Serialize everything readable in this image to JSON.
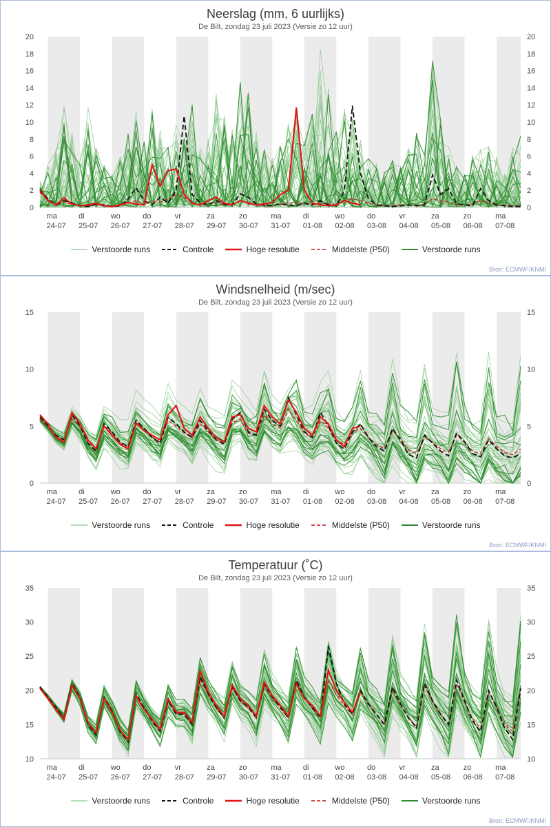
{
  "source_note": "Bron: ECMWF/KNMI",
  "colors": {
    "ensemble_light": "#8bc88b",
    "ensemble_dark": "#2e8b2e",
    "control": "#141414",
    "hires": "#e01515",
    "median": "#d03030",
    "band": "#ebebeb",
    "axis_text": "#454545",
    "baseline": "#c8c8c8",
    "panel_border": "#aebadd",
    "source_text": "#8d9cc0"
  },
  "x_axis": {
    "day_names": [
      "ma",
      "di",
      "wo",
      "do",
      "vr",
      "za",
      "zo",
      "ma",
      "di",
      "wo",
      "do",
      "vr",
      "za",
      "zo",
      "ma"
    ],
    "day_dates": [
      "24-07",
      "25-07",
      "26-07",
      "27-07",
      "28-07",
      "29-07",
      "30-07",
      "31-07",
      "01-08",
      "02-08",
      "03-08",
      "04-08",
      "05-08",
      "06-08",
      "07-08"
    ]
  },
  "legend": [
    {
      "label": "Verstoorde runs",
      "style": "ensemble-light"
    },
    {
      "label": "Controle",
      "style": "control"
    },
    {
      "label": "Hoge resolutie",
      "style": "hires"
    },
    {
      "label": "Middelste (P50)",
      "style": "median"
    },
    {
      "label": "Verstoorde runs",
      "style": "ensemble-dark"
    }
  ],
  "chart_data": [
    {
      "type": "line",
      "title": "Neerslag (mm, 6 uurlijks)",
      "subtitle": "De Bilt, zondag 23 juli 2023 (Versie zo 12 uur)",
      "legend_position": "bottom",
      "ylim": [
        0,
        20
      ],
      "yticks": [
        0,
        2,
        4,
        6,
        8,
        10,
        12,
        14,
        16,
        18,
        20
      ],
      "total_steps": 60,
      "series": {
        "control": {
          "label": "Controle",
          "values": [
            2.1,
            1.0,
            0.3,
            0.8,
            0.5,
            0.2,
            0.1,
            0.4,
            0.3,
            0.1,
            0.2,
            1.0,
            2.3,
            0.8,
            0.3,
            1.2,
            0.5,
            2.0,
            10.7,
            1.5,
            0.5,
            0.3,
            0.8,
            0.4,
            0.3,
            1.6,
            1.2,
            0.4,
            0.3,
            0.2,
            0.4,
            0.3,
            0.2,
            0.5,
            0.3,
            0.8,
            0.3,
            0.2,
            2.0,
            11.9,
            4.0,
            1.0,
            0.3,
            0.2,
            0.1,
            0.2,
            0.3,
            0.2,
            0.3,
            3.8,
            1.5,
            2.2,
            0.4,
            0.3,
            0.2,
            2.2,
            0.8,
            0.3,
            0.2,
            0.1,
            0.1
          ]
        },
        "hires": {
          "label": "Hoge resolutie",
          "values": [
            2.0,
            0.8,
            0.3,
            1.1,
            0.4,
            0.2,
            0.3,
            0.5,
            0.2,
            0.1,
            0.3,
            0.6,
            0.4,
            0.3,
            5.0,
            2.5,
            4.3,
            4.5,
            1.5,
            0.5,
            0.3,
            0.8,
            1.2,
            0.5,
            0.3,
            0.8,
            0.5,
            0.3,
            0.4,
            0.6,
            1.5,
            2.0,
            11.7,
            2.0,
            0.5,
            0.3,
            0.2,
            0.3,
            0.8,
            0.5,
            0.3
          ]
        },
        "median": {
          "label": "Middelste (P50)",
          "values": [
            1.8,
            0.8,
            0.3,
            0.6,
            0.4,
            0.2,
            0.2,
            0.3,
            0.2,
            0.1,
            0.2,
            0.5,
            0.8,
            0.4,
            0.8,
            0.6,
            1.0,
            1.5,
            1.2,
            0.5,
            0.3,
            0.4,
            0.6,
            0.3,
            0.3,
            0.8,
            0.6,
            0.3,
            0.2,
            0.2,
            0.4,
            0.5,
            0.6,
            0.4,
            0.3,
            0.5,
            0.4,
            0.3,
            0.8,
            1.0,
            0.8,
            0.5,
            0.3,
            0.2,
            0.2,
            0.3,
            0.3,
            0.2,
            0.4,
            1.0,
            0.8,
            0.6,
            0.3,
            0.3,
            0.4,
            0.8,
            0.5,
            0.3,
            0.2,
            0.2,
            0.2
          ]
        }
      },
      "ensemble": {
        "label": "Verstoorde runs",
        "n_members": 50,
        "mode": "precip",
        "max_envelope": [
          3,
          5,
          8,
          12,
          9,
          6,
          11.7,
          7,
          5,
          4,
          6,
          9,
          11.5,
          8,
          11.5,
          9,
          7,
          10,
          8,
          12,
          7,
          9,
          13.5,
          11,
          9,
          15.7,
          13.7,
          9,
          7,
          6,
          8,
          10,
          12,
          9,
          11,
          19,
          14,
          9,
          12,
          11,
          8,
          6,
          5,
          4,
          6,
          5,
          7,
          9,
          6,
          17.2,
          12,
          7,
          5,
          4,
          6,
          7,
          8.7,
          6,
          4,
          7,
          8.7
        ]
      }
    },
    {
      "type": "line",
      "title": "Windsnelheid (m/sec)",
      "subtitle": "De Bilt, zondag 23 juli 2023 (Versie zo 12 uur)",
      "legend_position": "bottom",
      "ylim": [
        0,
        15
      ],
      "yticks": [
        0,
        5,
        10,
        15
      ],
      "total_steps": 60,
      "series": {
        "control": {
          "label": "Controle",
          "values": [
            5.8,
            5.0,
            4.2,
            3.8,
            6.0,
            5.0,
            3.5,
            2.8,
            5.2,
            4.5,
            3.6,
            3.2,
            5.5,
            4.8,
            4.0,
            3.5,
            5.8,
            5.2,
            4.5,
            4.0,
            5.5,
            4.6,
            3.8,
            3.4,
            5.6,
            6.2,
            4.5,
            4.2,
            6.5,
            5.5,
            5.0,
            7.5,
            6.0,
            4.5,
            4.0,
            6.2,
            5.0,
            3.5,
            3.0,
            4.5,
            5.2,
            4.0,
            3.2,
            2.8,
            4.8,
            3.8,
            2.5,
            2.2,
            4.2,
            3.5,
            2.8,
            2.4,
            4.4,
            3.6,
            2.6,
            2.3,
            3.8,
            3.0,
            2.4,
            2.2,
            2.6
          ]
        },
        "hires": {
          "label": "Hoge resolutie",
          "values": [
            6.0,
            5.2,
            4.0,
            3.6,
            6.2,
            5.2,
            3.8,
            3.0,
            5.0,
            4.2,
            3.4,
            3.0,
            5.3,
            4.6,
            4.2,
            3.8,
            6.0,
            6.8,
            4.8,
            4.2,
            5.8,
            4.8,
            4.0,
            3.6,
            5.8,
            6.0,
            4.8,
            4.5,
            6.8,
            5.8,
            5.2,
            7.3,
            6.2,
            4.8,
            4.2,
            5.8,
            5.2,
            3.8,
            3.2,
            4.8,
            5.0
          ]
        },
        "median": {
          "label": "Middelste (P50)",
          "values": [
            5.6,
            4.9,
            4.1,
            3.7,
            5.7,
            4.9,
            3.6,
            3.0,
            5.0,
            4.4,
            3.5,
            3.2,
            5.2,
            4.6,
            4.0,
            3.6,
            5.5,
            5.0,
            4.4,
            4.0,
            5.2,
            4.5,
            3.8,
            3.5,
            5.3,
            5.6,
            4.4,
            4.2,
            6.0,
            5.2,
            4.8,
            6.5,
            5.5,
            4.4,
            4.0,
            5.5,
            4.8,
            3.8,
            3.4,
            4.4,
            4.8,
            4.0,
            3.4,
            3.0,
            4.6,
            3.9,
            2.9,
            2.6,
            4.0,
            3.6,
            3.0,
            2.7,
            4.2,
            3.6,
            2.8,
            2.6,
            3.9,
            3.2,
            2.7,
            2.5,
            3.0
          ]
        }
      },
      "ensemble": {
        "label": "Verstoorde runs",
        "n_members": 50,
        "mode": "walk",
        "spread_start": 1.0,
        "spread_end": 2.5,
        "midday_boost": 5.5
      }
    },
    {
      "type": "line",
      "title": "Temperatuur (˚C)",
      "subtitle": "De Bilt, zondag 23 juli 2023 (Versie zo 12 uur)",
      "legend_position": "bottom",
      "ylim": [
        10,
        35
      ],
      "yticks": [
        10,
        15,
        20,
        25,
        30,
        35
      ],
      "total_steps": 60,
      "series": {
        "control": {
          "label": "Controle",
          "values": [
            20.5,
            19.0,
            17.5,
            16.0,
            21.0,
            19.0,
            15.0,
            13.5,
            19.0,
            17.0,
            14.0,
            12.5,
            19.5,
            17.5,
            15.5,
            14.0,
            18.5,
            16.5,
            16.5,
            15.0,
            22.0,
            19.5,
            17.5,
            16.0,
            20.5,
            18.5,
            17.5,
            16.0,
            21.0,
            19.0,
            17.5,
            16.0,
            21.5,
            19.0,
            17.5,
            16.0,
            26.4,
            21.0,
            18.0,
            16.5,
            20.0,
            18.0,
            16.5,
            15.0,
            20.5,
            18.0,
            16.0,
            14.5,
            21.0,
            18.5,
            16.5,
            15.0,
            21.5,
            18.5,
            15.5,
            14.0,
            20.0,
            17.5,
            14.5,
            12.8,
            20.3
          ]
        },
        "hires": {
          "label": "Hoge resolutie",
          "values": [
            20.3,
            18.8,
            17.2,
            15.8,
            20.8,
            18.8,
            15.2,
            13.8,
            18.8,
            16.8,
            14.2,
            12.8,
            19.2,
            17.2,
            15.8,
            14.3,
            18.8,
            16.8,
            16.8,
            15.3,
            22.8,
            19.8,
            17.8,
            16.2,
            20.8,
            18.8,
            17.8,
            16.2,
            21.2,
            19.2,
            17.8,
            16.2,
            21.0,
            18.8,
            17.8,
            16.2,
            23.0,
            20.0,
            18.2,
            16.8,
            19.8
          ]
        },
        "median": {
          "label": "Middelste (P50)",
          "values": [
            20.4,
            19.0,
            17.4,
            16.0,
            20.8,
            18.9,
            15.2,
            13.8,
            18.9,
            17.0,
            14.2,
            12.8,
            19.3,
            17.4,
            15.6,
            14.2,
            18.4,
            16.6,
            16.6,
            15.2,
            21.6,
            19.3,
            17.4,
            16.0,
            20.4,
            18.4,
            17.4,
            16.0,
            20.8,
            18.9,
            17.4,
            16.0,
            21.2,
            18.9,
            17.4,
            16.1,
            21.5,
            19.3,
            17.8,
            16.4,
            19.8,
            17.9,
            16.4,
            15.1,
            20.2,
            17.9,
            16.0,
            14.7,
            20.6,
            18.3,
            16.4,
            15.1,
            21.0,
            18.3,
            15.8,
            14.4,
            19.8,
            17.4,
            15.0,
            14.0,
            19.9
          ]
        }
      },
      "ensemble": {
        "label": "Verstoorde runs",
        "n_members": 50,
        "mode": "walk",
        "spread_start": 0.8,
        "spread_end": 3.2,
        "midday_boost": 7.0
      }
    }
  ]
}
